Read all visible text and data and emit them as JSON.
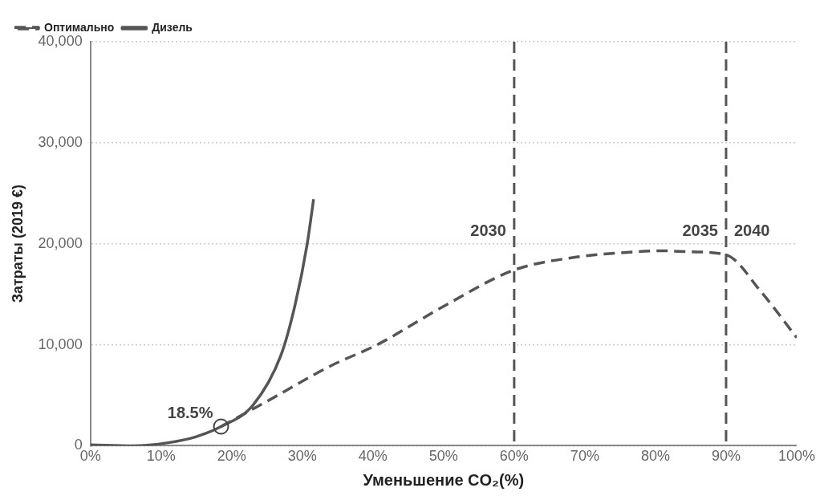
{
  "chart_data": {
    "type": "line",
    "xlabel": "Уменьшение CO₂(%)",
    "ylabel": "Затраты (2019 €)",
    "xlim": [
      0,
      100
    ],
    "xticks": [
      {
        "value": 0,
        "label": "0%"
      },
      {
        "value": 10,
        "label": "10%"
      },
      {
        "value": 20,
        "label": "20%"
      },
      {
        "value": 30,
        "label": "30%"
      },
      {
        "value": 40,
        "label": "40%"
      },
      {
        "value": 50,
        "label": "50%"
      },
      {
        "value": 60,
        "label": "60%"
      },
      {
        "value": 70,
        "label": "70%"
      },
      {
        "value": 80,
        "label": "80%"
      },
      {
        "value": 90,
        "label": "90%"
      },
      {
        "value": 100,
        "label": "100%"
      }
    ],
    "ylim": [
      0,
      40000
    ],
    "yticks": [
      {
        "value": 0,
        "label": "0"
      },
      {
        "value": 10000,
        "label": "10,000"
      },
      {
        "value": 20000,
        "label": "20,000"
      },
      {
        "value": 30000,
        "label": "30,000"
      },
      {
        "value": 40000,
        "label": "40,000"
      }
    ],
    "grid": "y",
    "legend": "top left",
    "marker": "none",
    "series": [
      {
        "name": "Оптимально",
        "color": "#555555",
        "line_style": "dashed",
        "x": [
          18.5,
          25,
          34,
          40.6,
          50,
          60,
          69,
          75,
          81,
          85,
          90,
          95,
          100
        ],
        "values": [
          1900,
          4400,
          7900,
          10000,
          13800,
          17400,
          18700,
          19100,
          19300,
          19200,
          18900,
          15200,
          10700
        ]
      },
      {
        "name": "Дизель",
        "color": "#555555",
        "line_style": "solid",
        "x": [
          0,
          6,
          11,
          15,
          18.5,
          23,
          27,
          29,
          30.7,
          31.6
        ],
        "values": [
          100,
          0,
          300,
          900,
          1900,
          4000,
          9000,
          14000,
          20000,
          24400
        ]
      }
    ],
    "ref_lines": [
      {
        "axis": "x",
        "value": 60,
        "color": "#555555",
        "line_style": "dashed"
      },
      {
        "axis": "x",
        "value": 90,
        "color": "#555555",
        "line_style": "dashed"
      }
    ],
    "annotations": [
      {
        "text": "18.5%",
        "x": 18.5,
        "y": 1900
      },
      "2030",
      "2035",
      "2040"
    ]
  }
}
